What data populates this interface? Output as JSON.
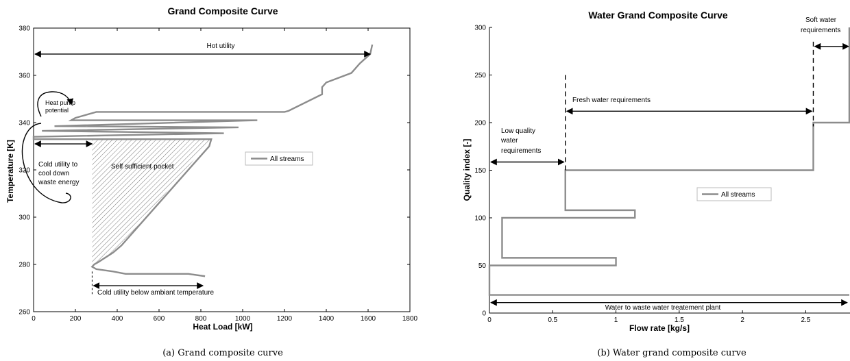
{
  "chart_data": [
    {
      "type": "line",
      "title": "Grand Composite Curve",
      "xlabel": "Heat Load [kW]",
      "ylabel": "Temperature [K]",
      "xlim": [
        0,
        1800
      ],
      "ylim": [
        260,
        380
      ],
      "xticks": [
        0,
        200,
        400,
        600,
        800,
        1000,
        1200,
        1400,
        1600,
        1800
      ],
      "yticks": [
        260,
        280,
        300,
        320,
        340,
        360,
        380
      ],
      "grid": false,
      "legend": "right",
      "series": [
        {
          "name": "All streams",
          "color": "#8c8c8c",
          "x": [
            1620,
            1610,
            1560,
            1520,
            1400,
            1380,
            1380,
            1220,
            1200,
            300,
            200,
            180,
            1070,
            100,
            120,
            980,
            40,
            50,
            910,
            0,
            0,
            850,
            840,
            450,
            420,
            380,
            310,
            290,
            280,
            300,
            380,
            440,
            740,
            820
          ],
          "y": [
            373,
            369,
            365,
            361,
            357,
            355,
            352,
            345,
            344.5,
            344.5,
            342,
            341,
            341,
            338.5,
            338.5,
            338,
            336.5,
            336.5,
            335.5,
            334,
            333,
            333,
            330,
            291,
            288,
            285,
            281,
            280,
            279,
            278,
            277,
            276,
            276,
            275
          ]
        }
      ],
      "annotations": [
        {
          "text": "Hot utility",
          "x_from": 0,
          "x_to": 1610,
          "y": 369
        },
        {
          "text": "Heat pump potential",
          "x": 60,
          "y": 345
        },
        {
          "text": "Cold utility to cool down waste energy",
          "x_from": 0,
          "x_to": 280,
          "y": 331
        },
        {
          "text": "Self sufficient pocket",
          "x": 330,
          "y": 323
        },
        {
          "text": "Cold utility below ambiant temperature",
          "x_from": 280,
          "x_to": 810,
          "y": 271
        }
      ]
    },
    {
      "type": "line",
      "title": "Water Grand Composite Curve",
      "xlabel": "Flow rate [kg/s]",
      "ylabel": "Quality index [-]",
      "xlim": [
        0,
        2.85
      ],
      "ylim": [
        0,
        300
      ],
      "xticks": [
        0,
        0.5,
        1,
        1.5,
        2,
        2.5
      ],
      "yticks": [
        0,
        50,
        100,
        150,
        200,
        250,
        300
      ],
      "grid": false,
      "legend": "center",
      "series": [
        {
          "name": "All streams",
          "color": "#8c8c8c",
          "x": [
            2.85,
            2.85,
            2.85,
            2.85,
            2.56,
            2.56,
            0.6,
            0.6,
            0.6,
            1.15,
            1.15,
            0.1,
            0.1,
            1.0,
            1.0,
            0.0,
            0.0,
            0.0,
            2.85
          ],
          "y": [
            300,
            290,
            275,
            200,
            200,
            150,
            150,
            150,
            108,
            108,
            100,
            100,
            58,
            58,
            50,
            50,
            20,
            19,
            19
          ]
        }
      ],
      "annotations": [
        {
          "text": "Soft water requirements",
          "x_from": 2.56,
          "x_to": 2.85,
          "y": 280
        },
        {
          "text": "Fresh water requirements",
          "x_from": 0.6,
          "x_to": 2.56,
          "y": 212
        },
        {
          "text": "Low quality water requirements",
          "x_from": 0,
          "x_to": 0.6,
          "y": 150
        },
        {
          "text": "Water to waste water treatement plant",
          "x_from": 0,
          "x_to": 2.85,
          "y": 11
        }
      ]
    }
  ],
  "captions": [
    "(a) Grand composite curve",
    "(b) Water grand composite curve"
  ],
  "annotation_lines": {
    "a_heat_pump": [
      "Heat pump",
      "potential"
    ],
    "a_cold_waste": [
      "Cold utility to",
      "cool down",
      "waste energy"
    ],
    "b_soft": [
      "Soft water",
      "requirements"
    ],
    "b_low": [
      "Low quality",
      "water",
      "requirements"
    ]
  }
}
